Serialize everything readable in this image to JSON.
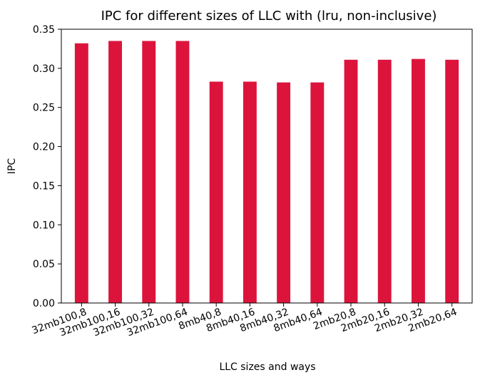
{
  "chart_data": {
    "type": "bar",
    "title": "IPC for different sizes of LLC with (lru, non-inclusive)",
    "xlabel": "LLC sizes and ways",
    "ylabel": "IPC",
    "categories": [
      "32mb100,8",
      "32mb100,16",
      "32mb100,32",
      "32mb100,64",
      "8mb40,8",
      "8mb40,16",
      "8mb40,32",
      "8mb40,64",
      "2mb20,8",
      "2mb20,16",
      "2mb20,32",
      "2mb20,64"
    ],
    "values": [
      0.332,
      0.335,
      0.335,
      0.335,
      0.283,
      0.283,
      0.282,
      0.282,
      0.311,
      0.311,
      0.312,
      0.311
    ],
    "ylim": [
      0,
      0.35
    ],
    "yticks": [
      "0.00",
      "0.05",
      "0.10",
      "0.15",
      "0.20",
      "0.25",
      "0.30",
      "0.35"
    ],
    "bar_color": "#dc143c",
    "grid": false,
    "legend": "none"
  }
}
